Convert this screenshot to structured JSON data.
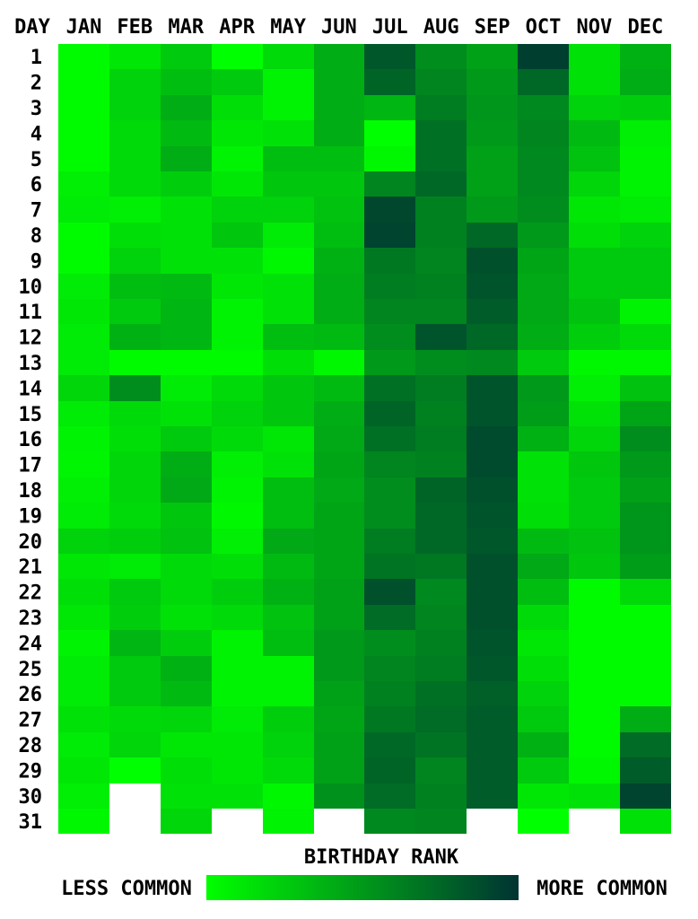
{
  "chart_data": {
    "type": "heatmap",
    "title": "",
    "corner_label": "DAY",
    "xlabel": "BIRTHDAY RANK",
    "months": [
      "JAN",
      "FEB",
      "MAR",
      "APR",
      "MAY",
      "JUN",
      "JUL",
      "AUG",
      "SEP",
      "OCT",
      "NOV",
      "DEC"
    ],
    "days": [
      "1",
      "2",
      "3",
      "4",
      "5",
      "6",
      "7",
      "8",
      "9",
      "10",
      "11",
      "12",
      "13",
      "14",
      "15",
      "16",
      "17",
      "18",
      "19",
      "20",
      "21",
      "22",
      "23",
      "24",
      "25",
      "26",
      "27",
      "28",
      "29",
      "30",
      "31"
    ],
    "colorbar": {
      "low_label": "LESS COMMON",
      "high_label": "MORE COMMON",
      "low_color": "#00ff00",
      "high_color": "#003333"
    },
    "value_scale": "0 = less common, 1 = more common (estimated from color)",
    "values": [
      [
        0.02,
        0.02,
        0.02,
        0.02,
        0.02,
        0.08,
        0.1,
        0.02,
        0.02,
        0.1,
        0.12,
        0.1,
        0.1,
        0.2,
        0.1,
        0.06,
        0.05,
        0.08,
        0.1,
        0.22,
        0.12,
        0.16,
        0.12,
        0.06,
        0.1,
        0.1,
        0.14,
        0.1,
        0.12,
        0.08,
        0.04
      ],
      [
        0.12,
        0.22,
        0.22,
        0.18,
        0.18,
        0.18,
        0.08,
        0.16,
        0.22,
        0.32,
        0.26,
        0.38,
        0.02,
        0.56,
        0.18,
        0.16,
        0.2,
        0.2,
        0.18,
        0.24,
        0.1,
        0.26,
        0.24,
        0.36,
        0.26,
        0.26,
        0.18,
        0.2,
        0.0,
        null,
        null
      ],
      [
        0.26,
        0.32,
        0.4,
        0.34,
        0.4,
        0.24,
        0.14,
        0.14,
        0.14,
        0.34,
        0.36,
        0.36,
        0.02,
        0.1,
        0.14,
        0.26,
        0.4,
        0.42,
        0.28,
        0.3,
        0.18,
        0.18,
        0.14,
        0.24,
        0.38,
        0.34,
        0.2,
        0.12,
        0.16,
        0.14,
        0.2
      ],
      [
        0.0,
        0.26,
        0.16,
        0.12,
        0.06,
        0.12,
        0.22,
        0.28,
        0.14,
        0.12,
        0.06,
        0.06,
        0.02,
        0.18,
        0.22,
        0.18,
        0.08,
        0.06,
        0.04,
        0.08,
        0.16,
        0.24,
        0.18,
        0.06,
        0.06,
        0.06,
        0.1,
        0.12,
        0.12,
        0.14,
        null
      ],
      [
        0.18,
        0.06,
        0.06,
        0.14,
        0.32,
        0.28,
        0.22,
        0.1,
        0.04,
        0.14,
        0.14,
        0.32,
        0.16,
        0.28,
        0.28,
        0.12,
        0.14,
        0.32,
        0.32,
        0.42,
        0.34,
        0.38,
        0.3,
        0.32,
        0.06,
        0.06,
        0.24,
        0.22,
        0.18,
        0.04,
        0.06
      ],
      [
        0.4,
        0.4,
        0.4,
        0.4,
        0.32,
        0.28,
        0.3,
        0.32,
        0.38,
        0.4,
        0.4,
        0.34,
        0.04,
        0.34,
        0.4,
        0.42,
        0.44,
        0.42,
        0.44,
        0.44,
        0.44,
        0.46,
        0.46,
        0.5,
        0.5,
        0.46,
        0.44,
        0.46,
        0.46,
        0.54,
        null
      ],
      [
        0.82,
        0.76,
        0.36,
        0.0,
        0.04,
        0.6,
        0.9,
        0.92,
        0.66,
        0.64,
        0.6,
        0.56,
        0.5,
        0.7,
        0.76,
        0.7,
        0.6,
        0.56,
        0.56,
        0.64,
        0.68,
        0.86,
        0.72,
        0.56,
        0.6,
        0.62,
        0.66,
        0.74,
        0.76,
        0.72,
        0.58
      ],
      [
        0.56,
        0.6,
        0.64,
        0.7,
        0.7,
        0.74,
        0.62,
        0.62,
        0.6,
        0.62,
        0.6,
        0.84,
        0.56,
        0.64,
        0.62,
        0.64,
        0.62,
        0.76,
        0.74,
        0.74,
        0.66,
        0.58,
        0.6,
        0.62,
        0.64,
        0.7,
        0.72,
        0.68,
        0.6,
        0.62,
        0.6
      ],
      [
        0.46,
        0.5,
        0.52,
        0.5,
        0.46,
        0.46,
        0.5,
        0.74,
        0.86,
        0.84,
        0.8,
        0.74,
        0.58,
        0.84,
        0.84,
        0.88,
        0.88,
        0.86,
        0.84,
        0.82,
        0.86,
        0.86,
        0.86,
        0.84,
        0.82,
        0.78,
        0.8,
        0.8,
        0.8,
        0.8,
        null
      ],
      [
        0.94,
        0.74,
        0.58,
        0.6,
        0.58,
        0.58,
        0.56,
        0.5,
        0.44,
        0.42,
        0.42,
        0.4,
        0.26,
        0.5,
        0.48,
        0.38,
        0.14,
        0.14,
        0.16,
        0.34,
        0.42,
        0.32,
        0.18,
        0.12,
        0.16,
        0.22,
        0.26,
        0.38,
        0.26,
        0.12,
        0.0
      ],
      [
        0.14,
        0.14,
        0.22,
        0.34,
        0.3,
        0.2,
        0.12,
        0.16,
        0.26,
        0.26,
        0.3,
        0.24,
        0.04,
        0.08,
        0.14,
        0.2,
        0.28,
        0.26,
        0.26,
        0.3,
        0.28,
        0.02,
        0.02,
        0.02,
        0.02,
        0.02,
        0.02,
        0.02,
        0.04,
        0.14,
        null
      ],
      [
        0.38,
        0.4,
        0.24,
        0.08,
        0.06,
        0.06,
        0.1,
        0.22,
        0.26,
        0.26,
        0.06,
        0.18,
        0.04,
        0.3,
        0.44,
        0.56,
        0.5,
        0.46,
        0.52,
        0.52,
        0.48,
        0.18,
        0.02,
        0.02,
        0.02,
        0.02,
        0.4,
        0.72,
        0.8,
        0.92,
        0.14
      ]
    ]
  }
}
